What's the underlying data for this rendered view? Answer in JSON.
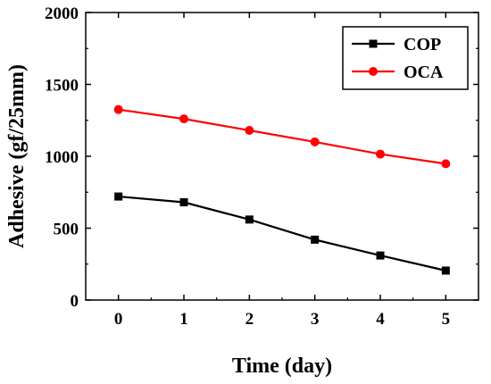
{
  "chart_data": {
    "type": "line",
    "xlabel": "Time (day)",
    "ylabel": "Adhesive (gf/25mm)",
    "x": [
      0,
      1,
      2,
      3,
      4,
      5
    ],
    "xlim": [
      -0.5,
      5.5
    ],
    "ylim": [
      0,
      2000
    ],
    "xticks": [
      "0",
      "1",
      "2",
      "3",
      "4",
      "5"
    ],
    "yticks": [
      "0",
      "500",
      "1000",
      "1500",
      "2000"
    ],
    "grid": false,
    "legend_position": "top-right",
    "series": [
      {
        "name": "COP",
        "color": "#000000",
        "marker": "square",
        "values": [
          720,
          680,
          560,
          420,
          310,
          205
        ]
      },
      {
        "name": "OCA",
        "color": "#ff0000",
        "marker": "circle",
        "values": [
          1325,
          1260,
          1180,
          1100,
          1015,
          948
        ]
      }
    ]
  }
}
